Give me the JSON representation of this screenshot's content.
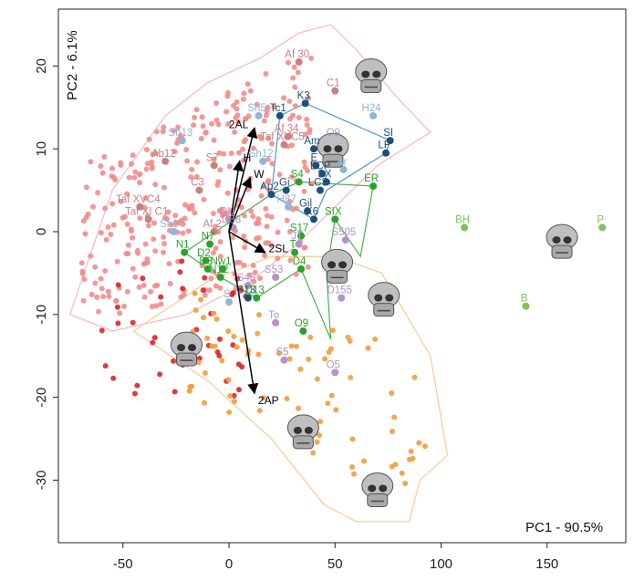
{
  "chart_data": {
    "type": "scatter",
    "xlabel": "PC1 - 90.5%",
    "ylabel": "PC2 - 6.1%",
    "xlim": [
      -80,
      180
    ],
    "ylim": [
      -37,
      26
    ],
    "x_ticks": [
      -50,
      0,
      50,
      100,
      150
    ],
    "y_ticks": [
      -30,
      -20,
      -10,
      0,
      10,
      20
    ],
    "grid": false,
    "colors": {
      "gorilla": "#f28c8c",
      "gorilla_dark": "#d62728",
      "pan": "#f39c3c",
      "pan_light": "#fdd49e",
      "hominin_blue": "#2c7fb8",
      "hominin_lightblue": "#9ecae1",
      "hominin_green": "#2ca02c",
      "hominin_lightgreen": "#a1d99b",
      "hominin_purple": "#b294c7",
      "hull_pink": "#f7b6c2",
      "hull_blue": "#4b96d6",
      "hull_green": "#4caf50",
      "hull_orange": "#fdc98d"
    },
    "labeled_points": [
      {
        "label": "Af 30",
        "x": 33,
        "y": 20.5,
        "color": "#c98080"
      },
      {
        "label": "C1",
        "x": 50,
        "y": 17,
        "color": "#c98080"
      },
      {
        "label": "K3",
        "x": 36,
        "y": 15.5,
        "color": "#1f4e79"
      },
      {
        "label": "Tc1",
        "x": 24,
        "y": 14,
        "color": "#1f4e79"
      },
      {
        "label": "Sh5",
        "x": 14,
        "y": 14,
        "color": "#8fb6d8"
      },
      {
        "label": "H24",
        "x": 68,
        "y": 14,
        "color": "#8fb6d8"
      },
      {
        "label": "Sh13",
        "x": -22,
        "y": 11,
        "color": "#8fb6d8"
      },
      {
        "label": "Af 34",
        "x": 28,
        "y": 11.5,
        "color": "#c98080"
      },
      {
        "label": "Taf XVC5",
        "x": 26,
        "y": 10.5,
        "color": "#c98080"
      },
      {
        "label": "O9",
        "x": 50,
        "y": 11,
        "color": "#b294c7"
      },
      {
        "label": "Am",
        "x": 40,
        "y": 10,
        "color": "#1f4e79"
      },
      {
        "label": "SI",
        "x": 76,
        "y": 11,
        "color": "#1f4e79"
      },
      {
        "label": "LF",
        "x": 74,
        "y": 9.5,
        "color": "#1f4e79"
      },
      {
        "label": "Ab12",
        "x": -30,
        "y": 8.5,
        "color": "#c98080"
      },
      {
        "label": "S7",
        "x": -7,
        "y": 8,
        "color": "#c98080"
      },
      {
        "label": "Sh12",
        "x": 16,
        "y": 8.5,
        "color": "#8fb6d8"
      },
      {
        "label": "E",
        "x": 41,
        "y": 8,
        "color": "#1f4e79"
      },
      {
        "label": "Ar",
        "x": 54,
        "y": 7.5,
        "color": "#8fb6d8"
      },
      {
        "label": "LCP",
        "x": 44,
        "y": 7,
        "color": "#1f4e79"
      },
      {
        "label": "C3",
        "x": -14,
        "y": 5,
        "color": "#c98080"
      },
      {
        "label": "S4",
        "x": 33,
        "y": 6,
        "color": "#2ca02c"
      },
      {
        "label": "SX",
        "x": 46,
        "y": 6,
        "color": "#1f4e79"
      },
      {
        "label": "LCS",
        "x": 43,
        "y": 5,
        "color": "#1f4e79"
      },
      {
        "label": "ER",
        "x": 68,
        "y": 5.5,
        "color": "#2ca02c"
      },
      {
        "label": "Ap2",
        "x": 20,
        "y": 4.5,
        "color": "#1f4e79"
      },
      {
        "label": "Gi",
        "x": 27,
        "y": 5,
        "color": "#1f4e79"
      },
      {
        "label": "Taf XVC4",
        "x": -42,
        "y": 3,
        "color": "#c98080"
      },
      {
        "label": "H87",
        "x": 28,
        "y": 3,
        "color": "#8fb6d8"
      },
      {
        "label": "Gil",
        "x": 37,
        "y": 2.5,
        "color": "#1f4e79"
      },
      {
        "label": "K6",
        "x": 40,
        "y": 1.5,
        "color": "#1f4e79"
      },
      {
        "label": "SIX",
        "x": 50,
        "y": 1.5,
        "color": "#2ca02c"
      },
      {
        "label": "Taf XI C1",
        "x": -38,
        "y": 1.5,
        "color": "#c98080"
      },
      {
        "label": "OU",
        "x": 0,
        "y": 1.5,
        "color": "#b294c7"
      },
      {
        "label": "D88",
        "x": 2,
        "y": 0.5,
        "color": "#b294c7"
      },
      {
        "label": "Sh17",
        "x": -26,
        "y": 0,
        "color": "#8fb6d8"
      },
      {
        "label": "Af 2",
        "x": -7,
        "y": 0,
        "color": "#c98080"
      },
      {
        "label": "S17",
        "x": 34,
        "y": -0.5,
        "color": "#2ca02c"
      },
      {
        "label": "S505",
        "x": 55,
        "y": -1,
        "color": "#b294c7"
      },
      {
        "label": "JT",
        "x": 33,
        "y": -1.5,
        "color": "#b294c7"
      },
      {
        "label": "T",
        "x": 31,
        "y": -2.5,
        "color": "#2ca02c"
      },
      {
        "label": "N1",
        "x": -21,
        "y": -2.5,
        "color": "#2ca02c"
      },
      {
        "label": "N7",
        "x": -9,
        "y": -1.5,
        "color": "#2ca02c"
      },
      {
        "label": "D4",
        "x": 34,
        "y": -4.5,
        "color": "#2ca02c"
      },
      {
        "label": "D2",
        "x": -11,
        "y": -3.5,
        "color": "#2ca02c"
      },
      {
        "label": "D3",
        "x": -10,
        "y": -4.5,
        "color": "#2ca02c"
      },
      {
        "label": "Nw1",
        "x": -3,
        "y": -4.5,
        "color": "#2ca02c"
      },
      {
        "label": "N12",
        "x": -4,
        "y": -5.5,
        "color": "#2ca02c"
      },
      {
        "label": "S53",
        "x": 22,
        "y": -5.5,
        "color": "#b294c7"
      },
      {
        "label": "S48",
        "x": 9,
        "y": -6.5,
        "color": "#b294c7"
      },
      {
        "label": "D155",
        "x": 53,
        "y": -8,
        "color": "#b294c7"
      },
      {
        "label": "S13",
        "x": 9,
        "y": -8,
        "color": "#1f4e79"
      },
      {
        "label": "D13",
        "x": 13,
        "y": -8,
        "color": "#2ca02c"
      },
      {
        "label": "S",
        "x": 0,
        "y": -8.5,
        "color": "#8fb6d8"
      },
      {
        "label": "To",
        "x": 22,
        "y": -11,
        "color": "#b294c7"
      },
      {
        "label": "O9",
        "x": 35,
        "y": -12,
        "color": "#2ca02c"
      },
      {
        "label": "S5",
        "x": 26,
        "y": -15.5,
        "color": "#b294c7"
      },
      {
        "label": "O5",
        "x": 50,
        "y": -17,
        "color": "#b294c7"
      },
      {
        "label": "BH",
        "x": 111,
        "y": 0.5,
        "color": "#7fbf5f"
      },
      {
        "label": "P",
        "x": 176,
        "y": 0.5,
        "color": "#7fbf5f"
      },
      {
        "label": "B",
        "x": 140,
        "y": -9,
        "color": "#7fbf5f"
      }
    ],
    "unlabeled_groups": [
      {
        "name": "gorilla",
        "color": "#f28c8c",
        "x_range": [
          -70,
          40
        ],
        "y_range": [
          -11,
          22
        ],
        "count": 320
      },
      {
        "name": "gorilla_dark",
        "color": "#d62728",
        "x_range": [
          -60,
          10
        ],
        "y_range": [
          -20,
          -3
        ],
        "count": 40
      },
      {
        "name": "pan",
        "color": "#f39c3c",
        "x_range": [
          -20,
          95
        ],
        "y_range": [
          -35,
          -5
        ],
        "count": 80
      }
    ],
    "hulls": [
      {
        "name": "pink",
        "stroke": "#f7b6c2",
        "points": [
          [
            -75,
            -10
          ],
          [
            -55,
            5
          ],
          [
            -30,
            14
          ],
          [
            -10,
            18
          ],
          [
            15,
            21
          ],
          [
            33,
            24
          ],
          [
            48,
            25
          ],
          [
            60,
            22
          ],
          [
            80,
            16
          ],
          [
            95,
            12
          ],
          [
            70,
            8
          ],
          [
            50,
            3
          ],
          [
            30,
            -2
          ],
          [
            10,
            -6
          ],
          [
            -20,
            -10
          ],
          [
            -55,
            -12
          ]
        ]
      },
      {
        "name": "blue",
        "stroke": "#4b96d6",
        "points": [
          [
            24,
            14
          ],
          [
            36,
            15.5
          ],
          [
            76,
            11
          ],
          [
            74,
            9.5
          ],
          [
            46,
            5
          ],
          [
            40,
            1.5
          ],
          [
            20,
            4.5
          ],
          [
            24,
            14
          ]
        ]
      },
      {
        "name": "green",
        "stroke": "#4caf50",
        "points": [
          [
            -21,
            -2.5
          ],
          [
            20,
            4.5
          ],
          [
            33,
            6
          ],
          [
            68,
            5.5
          ],
          [
            62,
            -3
          ],
          [
            50,
            1.5
          ],
          [
            46,
            -5
          ],
          [
            48,
            -13
          ],
          [
            34,
            -4.5
          ],
          [
            13,
            -8
          ],
          [
            -4,
            -5.5
          ],
          [
            -21,
            -2.5
          ]
        ]
      },
      {
        "name": "orange",
        "stroke": "#fdc98d",
        "points": [
          [
            -45,
            -12
          ],
          [
            -10,
            -18
          ],
          [
            20,
            -25
          ],
          [
            45,
            -33
          ],
          [
            60,
            -35
          ],
          [
            85,
            -35
          ],
          [
            90,
            -30
          ],
          [
            103,
            -27
          ],
          [
            95,
            -15
          ],
          [
            72,
            -5
          ],
          [
            50,
            -3
          ],
          [
            20,
            -3
          ],
          [
            -10,
            -6
          ],
          [
            -45,
            -12
          ]
        ]
      }
    ],
    "arrows": [
      {
        "label": "2AL",
        "x2": 12,
        "y2": 12.5
      },
      {
        "label": "H",
        "x2": 5,
        "y2": 8.5
      },
      {
        "label": "W",
        "x2": 10,
        "y2": 6.5
      },
      {
        "label": "2SL",
        "x2": 17,
        "y2": -2.5
      },
      {
        "label": "2AP",
        "x2": 12,
        "y2": -19.5
      }
    ],
    "skull_icons": [
      {
        "x": 67,
        "y": 19
      },
      {
        "x": 49,
        "y": 10
      },
      {
        "x": 157,
        "y": -1
      },
      {
        "x": 51,
        "y": -4
      },
      {
        "x": 73,
        "y": -8
      },
      {
        "x": -20,
        "y": -14
      },
      {
        "x": 35,
        "y": -24
      },
      {
        "x": 70,
        "y": -31
      }
    ]
  }
}
